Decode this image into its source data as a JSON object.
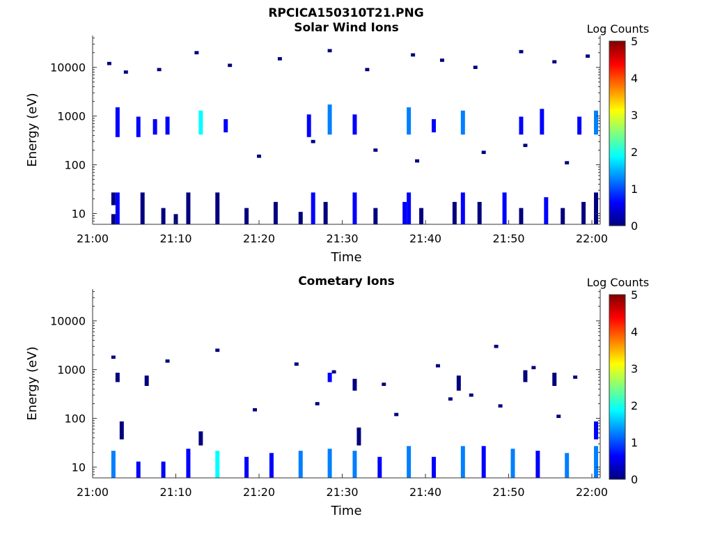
{
  "figure": {
    "title": "RPCICA150310T21.PNG"
  },
  "palette": [
    "#00007f",
    "#0000ff",
    "#007fff",
    "#00ffff",
    "#7fff7f",
    "#ffff00",
    "#ff7f00",
    "#ff0000",
    "#7f0000"
  ],
  "chart_data": [
    {
      "type": "heatmap",
      "title": "Solar Wind Ions",
      "xlabel": "Time",
      "ylabel": "Energy (eV)",
      "xlim": [
        "21:00",
        "22:01"
      ],
      "ylim": [
        6,
        45000
      ],
      "yscale": "log",
      "xticks": [
        "21:00",
        "21:10",
        "21:20",
        "21:30",
        "21:40",
        "21:50",
        "22:00"
      ],
      "yticks": [
        {
          "value": 10,
          "label": "10"
        },
        {
          "value": 100,
          "label": "100"
        },
        {
          "value": 1000,
          "label": "1000"
        },
        {
          "value": 10000,
          "label": "10000"
        }
      ],
      "colorbar": {
        "label": "Log Counts",
        "range": [
          0,
          5
        ],
        "ticks": [
          "0",
          "1",
          "2",
          "3",
          "4",
          "5"
        ]
      },
      "grid": false,
      "values_note": "",
      "cells": [
        [
          2.5,
          16,
          25,
          0.2
        ],
        [
          2.5,
          6,
          9,
          0.3
        ],
        [
          3.0,
          6,
          25,
          0.4
        ],
        [
          6.0,
          6,
          25,
          0.3
        ],
        [
          8.5,
          6,
          12,
          0.2
        ],
        [
          10.0,
          6,
          9,
          0.3
        ],
        [
          11.5,
          6,
          25,
          0.3
        ],
        [
          15.0,
          6,
          25,
          0.2
        ],
        [
          18.5,
          6,
          12,
          0.1
        ],
        [
          22.0,
          6,
          16,
          0.3
        ],
        [
          25.0,
          6,
          10,
          0.3
        ],
        [
          26.5,
          6,
          25,
          0.4
        ],
        [
          28.0,
          6,
          16,
          0.2
        ],
        [
          31.5,
          6,
          25,
          0.4
        ],
        [
          34.0,
          6,
          12,
          0.3
        ],
        [
          37.5,
          6,
          16,
          0.6
        ],
        [
          38.0,
          6,
          25,
          0.5
        ],
        [
          39.5,
          6,
          12,
          0.3
        ],
        [
          43.5,
          6,
          16,
          0.3
        ],
        [
          44.5,
          6,
          25,
          0.5
        ],
        [
          46.5,
          6,
          16,
          0.3
        ],
        [
          49.5,
          6,
          25,
          0.4
        ],
        [
          51.5,
          6,
          12,
          0.3
        ],
        [
          54.5,
          6,
          20,
          0.4
        ],
        [
          56.5,
          6,
          12,
          0.3
        ],
        [
          59.0,
          6,
          16,
          0.3
        ],
        [
          60.5,
          6,
          25,
          0.3
        ],
        [
          3.0,
          400,
          1400,
          0.8
        ],
        [
          5.5,
          400,
          900,
          0.6
        ],
        [
          7.5,
          450,
          800,
          0.5
        ],
        [
          9.0,
          450,
          900,
          0.6
        ],
        [
          13.0,
          450,
          1200,
          1.6
        ],
        [
          16.0,
          500,
          800,
          0.4
        ],
        [
          26.0,
          400,
          1000,
          0.6
        ],
        [
          28.5,
          450,
          1600,
          1.4
        ],
        [
          31.5,
          450,
          1000,
          0.7
        ],
        [
          38.0,
          450,
          1400,
          1.0
        ],
        [
          41.0,
          500,
          800,
          0.5
        ],
        [
          44.5,
          450,
          1200,
          1.1
        ],
        [
          51.5,
          450,
          900,
          0.5
        ],
        [
          54.0,
          450,
          1300,
          0.9
        ],
        [
          58.5,
          450,
          900,
          0.6
        ],
        [
          60.5,
          450,
          1200,
          1.0
        ],
        [
          2.0,
          12000,
          12000,
          0.2
        ],
        [
          4.0,
          8000,
          8000,
          0.2
        ],
        [
          8.0,
          9000,
          9000,
          0.2
        ],
        [
          12.5,
          20000,
          20000,
          0.2
        ],
        [
          16.5,
          11000,
          11000,
          0.2
        ],
        [
          22.5,
          15000,
          15000,
          0.2
        ],
        [
          28.5,
          22000,
          22000,
          0.2
        ],
        [
          33.0,
          9000,
          9000,
          0.2
        ],
        [
          38.5,
          18000,
          18000,
          0.2
        ],
        [
          42.0,
          14000,
          14000,
          0.2
        ],
        [
          46.0,
          10000,
          10000,
          0.2
        ],
        [
          51.5,
          21000,
          21000,
          0.2
        ],
        [
          55.5,
          13000,
          13000,
          0.2
        ],
        [
          59.5,
          17000,
          17000,
          0.2
        ],
        [
          20.0,
          150,
          150,
          0.2
        ],
        [
          26.5,
          300,
          300,
          0.2
        ],
        [
          34.0,
          200,
          200,
          0.2
        ],
        [
          39.0,
          120,
          120,
          0.2
        ],
        [
          47.0,
          180,
          180,
          0.2
        ],
        [
          52.0,
          250,
          250,
          0.2
        ],
        [
          57.0,
          110,
          110,
          0.2
        ]
      ]
    },
    {
      "type": "heatmap",
      "title": "Cometary Ions",
      "xlabel": "Time",
      "ylabel": "Energy (eV)",
      "xlim": [
        "21:00",
        "22:01"
      ],
      "ylim": [
        6,
        45000
      ],
      "yscale": "log",
      "xticks": [
        "21:00",
        "21:10",
        "21:20",
        "21:30",
        "21:40",
        "21:50",
        "22:00"
      ],
      "yticks": [
        {
          "value": 10,
          "label": "10"
        },
        {
          "value": 100,
          "label": "100"
        },
        {
          "value": 1000,
          "label": "1000"
        },
        {
          "value": 10000,
          "label": "10000"
        }
      ],
      "colorbar": {
        "label": "Log Counts",
        "range": [
          0,
          5
        ],
        "ticks": [
          "0",
          "1",
          "2",
          "3",
          "4",
          "5"
        ]
      },
      "grid": false,
      "values_note": "",
      "cells": [
        [
          2.5,
          6,
          20,
          1.0
        ],
        [
          5.5,
          6,
          12,
          0.6
        ],
        [
          8.5,
          6,
          12,
          0.7
        ],
        [
          11.5,
          6,
          22,
          0.9
        ],
        [
          15.0,
          6,
          20,
          1.6
        ],
        [
          18.5,
          6,
          15,
          0.9
        ],
        [
          21.5,
          6,
          18,
          0.8
        ],
        [
          25.0,
          6,
          20,
          1.3
        ],
        [
          28.5,
          6,
          22,
          1.4
        ],
        [
          31.5,
          6,
          20,
          1.0
        ],
        [
          34.5,
          6,
          15,
          0.8
        ],
        [
          38.0,
          6,
          25,
          1.4
        ],
        [
          41.0,
          6,
          15,
          0.8
        ],
        [
          44.5,
          6,
          25,
          1.3
        ],
        [
          47.0,
          6,
          25,
          0.9
        ],
        [
          50.5,
          6,
          22,
          1.1
        ],
        [
          53.5,
          6,
          20,
          0.9
        ],
        [
          57.0,
          6,
          18,
          1.3
        ],
        [
          60.5,
          6,
          25,
          1.2
        ],
        [
          3.5,
          40,
          80,
          0.3
        ],
        [
          13.0,
          30,
          50,
          0.3
        ],
        [
          32.0,
          30,
          60,
          0.3
        ],
        [
          60.5,
          40,
          80,
          0.5
        ],
        [
          3.0,
          600,
          800,
          0.3
        ],
        [
          6.5,
          500,
          700,
          0.3
        ],
        [
          28.5,
          600,
          800,
          0.4
        ],
        [
          31.5,
          400,
          600,
          0.3
        ],
        [
          44.0,
          400,
          700,
          0.3
        ],
        [
          52.0,
          600,
          900,
          0.3
        ],
        [
          55.5,
          500,
          800,
          0.3
        ],
        [
          2.5,
          1800,
          1800,
          0.2
        ],
        [
          9.0,
          1500,
          1500,
          0.2
        ],
        [
          15.0,
          2500,
          2500,
          0.2
        ],
        [
          24.5,
          1300,
          1300,
          0.2
        ],
        [
          29.0,
          900,
          900,
          0.2
        ],
        [
          35.0,
          500,
          500,
          0.2
        ],
        [
          41.5,
          1200,
          1200,
          0.2
        ],
        [
          45.5,
          300,
          300,
          0.2
        ],
        [
          48.5,
          3000,
          3000,
          0.2
        ],
        [
          53.0,
          1100,
          1100,
          0.2
        ],
        [
          58.0,
          700,
          700,
          0.2
        ],
        [
          19.5,
          150,
          150,
          0.2
        ],
        [
          27.0,
          200,
          200,
          0.2
        ],
        [
          36.5,
          120,
          120,
          0.2
        ],
        [
          43.0,
          250,
          250,
          0.2
        ],
        [
          49.0,
          180,
          180,
          0.2
        ],
        [
          56.0,
          110,
          110,
          0.2
        ]
      ]
    }
  ]
}
